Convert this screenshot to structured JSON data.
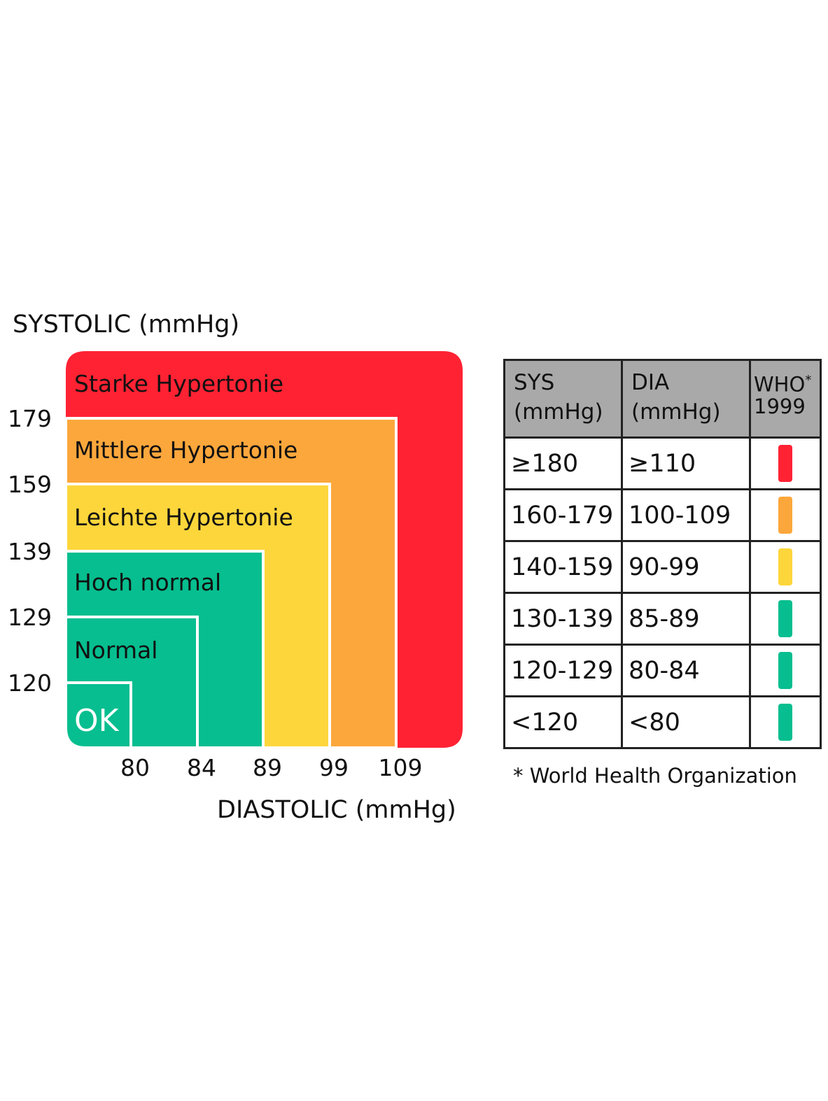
{
  "chart_data": {
    "type": "area",
    "ylabel": "SYSTOLIC (mmHg)",
    "xlabel": "DIASTOLIC (mmHg)",
    "y_ticks": [
      "120",
      "129",
      "139",
      "159",
      "179"
    ],
    "x_ticks": [
      "80",
      "84",
      "89",
      "99",
      "109"
    ],
    "zones": [
      {
        "label": "Starke Hypertonie",
        "color": "#ff2233",
        "sys_max": null,
        "dia_max": null
      },
      {
        "label": "Mittlere Hypertonie",
        "color": "#fca73c",
        "sys_max": 179,
        "dia_max": 109
      },
      {
        "label": "Leichte Hypertonie",
        "color": "#fdd63b",
        "sys_max": 159,
        "dia_max": 99
      },
      {
        "label": "Hoch normal",
        "color": "#06be8f",
        "sys_max": 139,
        "dia_max": 89
      },
      {
        "label": "Normal",
        "color": "#06be8f",
        "sys_max": 129,
        "dia_max": 84
      },
      {
        "label": "OK",
        "color": "#06be8f",
        "sys_max": 120,
        "dia_max": 80
      }
    ]
  },
  "table": {
    "headers": {
      "sys_line1": "SYS",
      "sys_line2": "(mmHg)",
      "dia_line1": "DIA",
      "dia_line2": "(mmHg)",
      "who_line1": "WHO",
      "who_mark": "*",
      "who_line2": "1999"
    },
    "rows": [
      {
        "sys": "≥180",
        "dia": "≥110",
        "color": "#ff2233"
      },
      {
        "sys": "160-179",
        "dia": "100-109",
        "color": "#fca73c"
      },
      {
        "sys": "140-159",
        "dia": "90-99",
        "color": "#fdd63b"
      },
      {
        "sys": "130-139",
        "dia": "85-89",
        "color": "#06be8f"
      },
      {
        "sys": "120-129",
        "dia": "80-84",
        "color": "#06be8f"
      },
      {
        "sys": "<120",
        "dia": "<80",
        "color": "#06be8f"
      }
    ]
  },
  "footnote": "* World Health Organization"
}
